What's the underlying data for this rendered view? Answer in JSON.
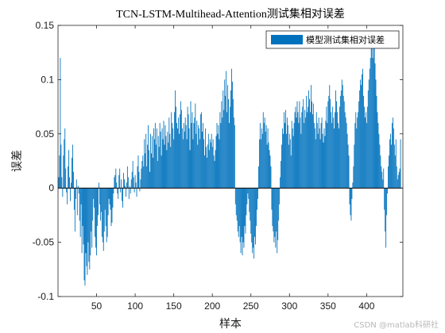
{
  "chart_data": {
    "type": "bar",
    "title": "TCN-LSTM-Multihead-Attention测试集相对误差",
    "xlabel": "样本",
    "ylabel": "误差",
    "xlim": [
      0,
      447
    ],
    "ylim": [
      -0.1,
      0.15
    ],
    "xticks": [
      50,
      100,
      150,
      200,
      250,
      300,
      350,
      400
    ],
    "yticks": [
      -0.1,
      -0.05,
      0,
      0.05,
      0.1,
      0.15
    ],
    "ytick_labels": [
      "-0.1",
      "-0.05",
      "0",
      "0.05",
      "0.1",
      "0.15"
    ],
    "legend": {
      "label": "模型测试集相对误差",
      "location": "top-right"
    },
    "series": [
      {
        "name": "模型测试集相对误差",
        "color": "#0072BD",
        "values": [
          0.01,
          0.03,
          0.12,
          0.04,
          0.01,
          -0.008,
          0.03,
          0.045,
          0.055,
          0.018,
          -0.004,
          -0.015,
          0.02,
          0.035,
          0.01,
          -0.012,
          0.005,
          0.028,
          0.04,
          0.015,
          -0.02,
          -0.04,
          -0.01,
          0.008,
          -0.025,
          0.002,
          -0.005,
          -0.03,
          -0.045,
          -0.015,
          -0.06,
          -0.035,
          -0.052,
          -0.085,
          -0.09,
          -0.06,
          -0.072,
          -0.08,
          -0.05,
          -0.068,
          -0.075,
          -0.062,
          -0.04,
          -0.055,
          -0.03,
          -0.01,
          -0.018,
          -0.045,
          -0.055,
          -0.062,
          -0.035,
          -0.025,
          0.005,
          -0.015,
          -0.03,
          -0.022,
          -0.045,
          -0.05,
          -0.058,
          -0.04,
          -0.02,
          -0.035,
          -0.05,
          -0.045,
          -0.025,
          -0.01,
          -0.015,
          -0.02,
          -0.035,
          -0.032,
          -0.018,
          -0.005,
          0.01,
          0.012,
          0.018,
          0.005,
          -0.005,
          -0.01,
          0.012,
          0.018,
          -0.004,
          0.008,
          -0.012,
          -0.018,
          0.014,
          0.008,
          0.002,
          -0.008,
          0.005,
          0.02,
          0.01,
          -0.01,
          0.002,
          -0.005,
          0.008,
          0.015,
          0.025,
          0.01,
          -0.004,
          0.012,
          0.005,
          -0.008,
          0.02,
          0.03,
          0.015,
          -0.003,
          0.008,
          0.018,
          0.025,
          0.03,
          0.02,
          0.045,
          0.032,
          0.05,
          0.02,
          0.04,
          0.058,
          0.035,
          0.015,
          0.05,
          0.032,
          0.048,
          0.028,
          0.055,
          0.045,
          0.06,
          0.04,
          0.055,
          0.025,
          0.048,
          0.038,
          0.06,
          0.052,
          0.03,
          0.055,
          0.045,
          0.062,
          0.04,
          0.058,
          0.048,
          0.035,
          0.052,
          0.042,
          0.065,
          0.05,
          0.038,
          0.07,
          0.06,
          0.055,
          0.045,
          0.07,
          0.09,
          0.075,
          0.06,
          0.055,
          0.065,
          0.05,
          0.068,
          0.08,
          0.072,
          0.055,
          0.045,
          0.06,
          0.052,
          0.065,
          0.058,
          0.045,
          0.075,
          0.068,
          0.055,
          0.035,
          0.08,
          0.06,
          0.07,
          0.045,
          0.06,
          0.065,
          0.078,
          0.05,
          0.062,
          0.04,
          0.058,
          0.055,
          0.045,
          0.068,
          0.07,
          0.052,
          0.06,
          0.045,
          0.03,
          0.055,
          0.038,
          0.028,
          0.04,
          0.05,
          0.035,
          0.045,
          0.042,
          0.05,
          0.038,
          0.045,
          0.03,
          0.025,
          0.035,
          0.048,
          0.06,
          0.05,
          0.058,
          0.045,
          0.07,
          0.06,
          0.08,
          0.065,
          0.09,
          0.072,
          0.1,
          0.085,
          0.108,
          0.07,
          0.095,
          0.082,
          0.06,
          0.075,
          0.09,
          0.11,
          0.098,
          0.082,
          0.065,
          0.058,
          -0.015,
          -0.025,
          -0.03,
          -0.04,
          -0.045,
          -0.035,
          -0.05,
          -0.06,
          -0.045,
          -0.062,
          -0.05,
          -0.055,
          -0.035,
          -0.042,
          -0.025,
          -0.015,
          -0.005,
          -0.01,
          -0.022,
          -0.03,
          -0.042,
          -0.05,
          -0.06,
          -0.055,
          -0.065,
          -0.045,
          -0.052,
          -0.035,
          -0.02,
          -0.01,
          0.02,
          0.045,
          0.06,
          0.045,
          0.055,
          0.05,
          0.07,
          0.06,
          0.065,
          0.052,
          0.058,
          0.04,
          0.055,
          0.042,
          0.035,
          0.03,
          0.02,
          -0.02,
          -0.035,
          -0.04,
          -0.05,
          -0.045,
          -0.055,
          -0.04,
          -0.06,
          -0.048,
          -0.03,
          -0.015,
          0.01,
          0.025,
          0.04,
          0.055,
          0.05,
          0.07,
          0.06,
          0.072,
          0.05,
          0.065,
          0.058,
          0.04,
          0.05,
          0.045,
          0.03,
          0.062,
          0.055,
          0.048,
          0.06,
          0.07,
          0.075,
          0.065,
          0.08,
          0.07,
          0.06,
          0.08,
          0.065,
          0.05,
          0.07,
          0.075,
          0.082,
          0.06,
          0.072,
          0.065,
          0.085,
          0.07,
          0.075,
          0.09,
          0.082,
          0.07,
          0.095,
          0.08,
          0.068,
          0.078,
          0.06,
          0.055,
          0.045,
          0.07,
          0.06,
          0.05,
          0.065,
          0.055,
          0.045,
          0.06,
          0.065,
          0.05,
          0.042,
          0.055,
          0.048,
          0.062,
          0.075,
          0.06,
          0.08,
          0.085,
          0.095,
          0.082,
          0.07,
          0.06,
          0.075,
          0.065,
          0.055,
          0.07,
          0.09,
          0.08,
          0.07,
          0.06,
          0.055,
          0.075,
          0.085,
          0.09,
          0.1,
          0.095,
          0.085,
          0.08,
          0.07,
          0.065,
          0.06,
          0.05,
          0.04,
          0.03,
          -0.015,
          -0.025,
          -0.03,
          -0.01,
          0.005,
          0.02,
          0.04,
          0.06,
          0.07,
          0.055,
          0.065,
          0.07,
          0.08,
          0.09,
          0.1,
          0.095,
          0.105,
          0.11,
          0.085,
          0.075,
          0.065,
          0.07,
          0.06,
          0.075,
          0.09,
          0.1,
          0.11,
          0.12,
          0.145,
          0.135,
          0.12,
          0.145,
          0.14,
          0.115,
          0.1,
          0.085,
          0.07,
          0.06,
          0.05,
          0.04,
          0.03,
          0.02,
          0.015,
          0.008,
          0.018,
          -0.02,
          -0.04,
          -0.055,
          -0.025,
          -0.005,
          0.02,
          0.03,
          0.045,
          0.05,
          0.04,
          0.06,
          0.065,
          0.055,
          0.04,
          0.03,
          0.045,
          0.02,
          0.008,
          0.012,
          0.015,
          0.018,
          0.045
        ]
      }
    ]
  },
  "footer": {
    "watermark": "CSDN @matlab科研社"
  }
}
